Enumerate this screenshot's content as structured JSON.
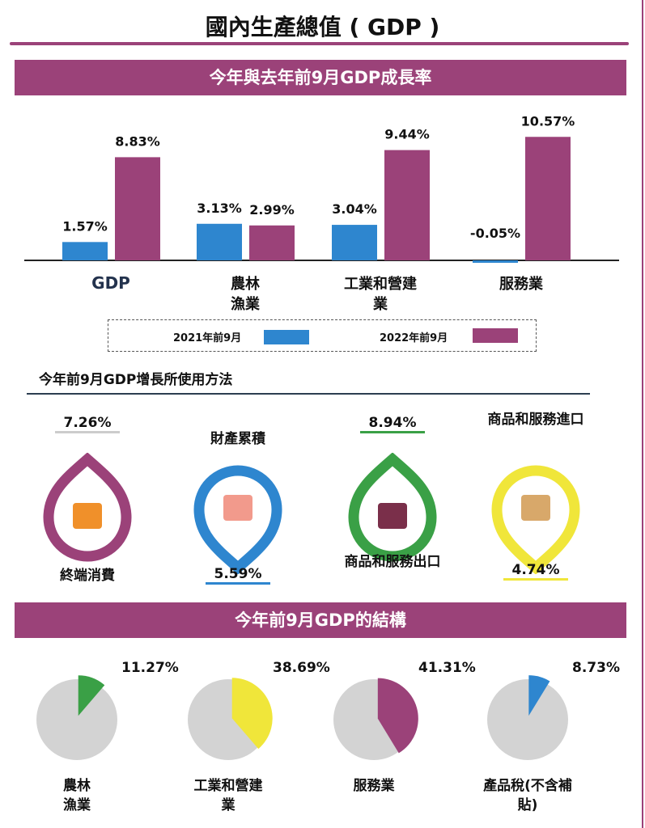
{
  "title": "國內生產總值 ( GDP )",
  "colors": {
    "purple": "#9b4279",
    "blue": "#2e86cf",
    "green": "#3aa046",
    "yellow": "#f0e63a",
    "grey": "#d3d3d3"
  },
  "chart_data": [
    {
      "type": "bar",
      "title": "今年與去年前9月GDP成長率",
      "categories": [
        "GDP",
        "農林漁業",
        "工業和營建業",
        "服務業"
      ],
      "category_labels": [
        "GDP",
        "農林\n漁業",
        "工業和營建\n業",
        "服務業"
      ],
      "series": [
        {
          "name": "2021年前9月",
          "values": [
            1.57,
            3.13,
            3.04,
            -0.05
          ],
          "labels": [
            "1.57%",
            "3.13%",
            "3.04%",
            "-0.05%"
          ],
          "color": "#2e86cf"
        },
        {
          "name": "2022年前9月",
          "values": [
            8.83,
            2.99,
            9.44,
            10.57
          ],
          "labels": [
            "8.83%",
            "2.99%",
            "9.44%",
            "10.57%"
          ],
          "color": "#9b4279"
        }
      ],
      "legend": "bottom",
      "grid": false
    },
    {
      "type": "table",
      "title": "今年前9月GDP增長所使用方法",
      "items": [
        {
          "label": "終端消費",
          "value": "7.26%",
          "color": "#9b4279",
          "icon": "shopping-bag-icon"
        },
        {
          "label": "財產累積",
          "value": "5.59%",
          "color": "#2e86cf",
          "icon": "piggy-bank-icon"
        },
        {
          "label": "商品和服務出口",
          "value": "8.94%",
          "color": "#3aa046",
          "icon": "cargo-ship-icon"
        },
        {
          "label": "商品和服務進口",
          "value": "4.74%",
          "color": "#f0e63a",
          "icon": "scale-boxes-icon"
        }
      ]
    },
    {
      "type": "pie",
      "title": "今年前9月GDP的結構",
      "slices": [
        {
          "label": "農林\n漁業",
          "value": 11.27,
          "text": "11.27%",
          "color": "#3aa046"
        },
        {
          "label": "工業和營建\n業",
          "value": 38.69,
          "text": "38.69%",
          "color": "#f0e63a"
        },
        {
          "label": "服務業",
          "value": 41.31,
          "text": "41.31%",
          "color": "#9b4279"
        },
        {
          "label": "產品稅(不含補\n貼)",
          "value": 8.73,
          "text": "8.73%",
          "color": "#2e86cf"
        }
      ]
    }
  ]
}
